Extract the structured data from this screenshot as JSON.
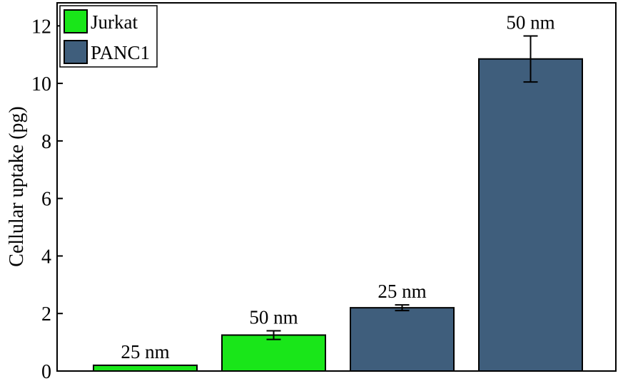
{
  "chart_data": {
    "type": "bar",
    "title": "",
    "xlabel": "",
    "ylabel": "Cellular uptake (pg)",
    "ylim": [
      0,
      12.8
    ],
    "yticks": [
      0,
      2,
      4,
      6,
      8,
      10,
      12
    ],
    "grid": false,
    "legend_position": "top-left",
    "legend": [
      {
        "name": "Jurkat",
        "color": "#19e619"
      },
      {
        "name": "PANC1",
        "color": "#3f5e7c"
      }
    ],
    "bars": [
      {
        "label": "25 nm",
        "group": "Jurkat",
        "value": 0.2,
        "error": 0
      },
      {
        "label": "50 nm",
        "group": "Jurkat",
        "value": 1.25,
        "error": 0.15
      },
      {
        "label": "25 nm",
        "group": "PANC1",
        "value": 2.2,
        "error": 0.1
      },
      {
        "label": "50 nm",
        "group": "PANC1",
        "value": 10.85,
        "error": 0.8
      }
    ]
  }
}
